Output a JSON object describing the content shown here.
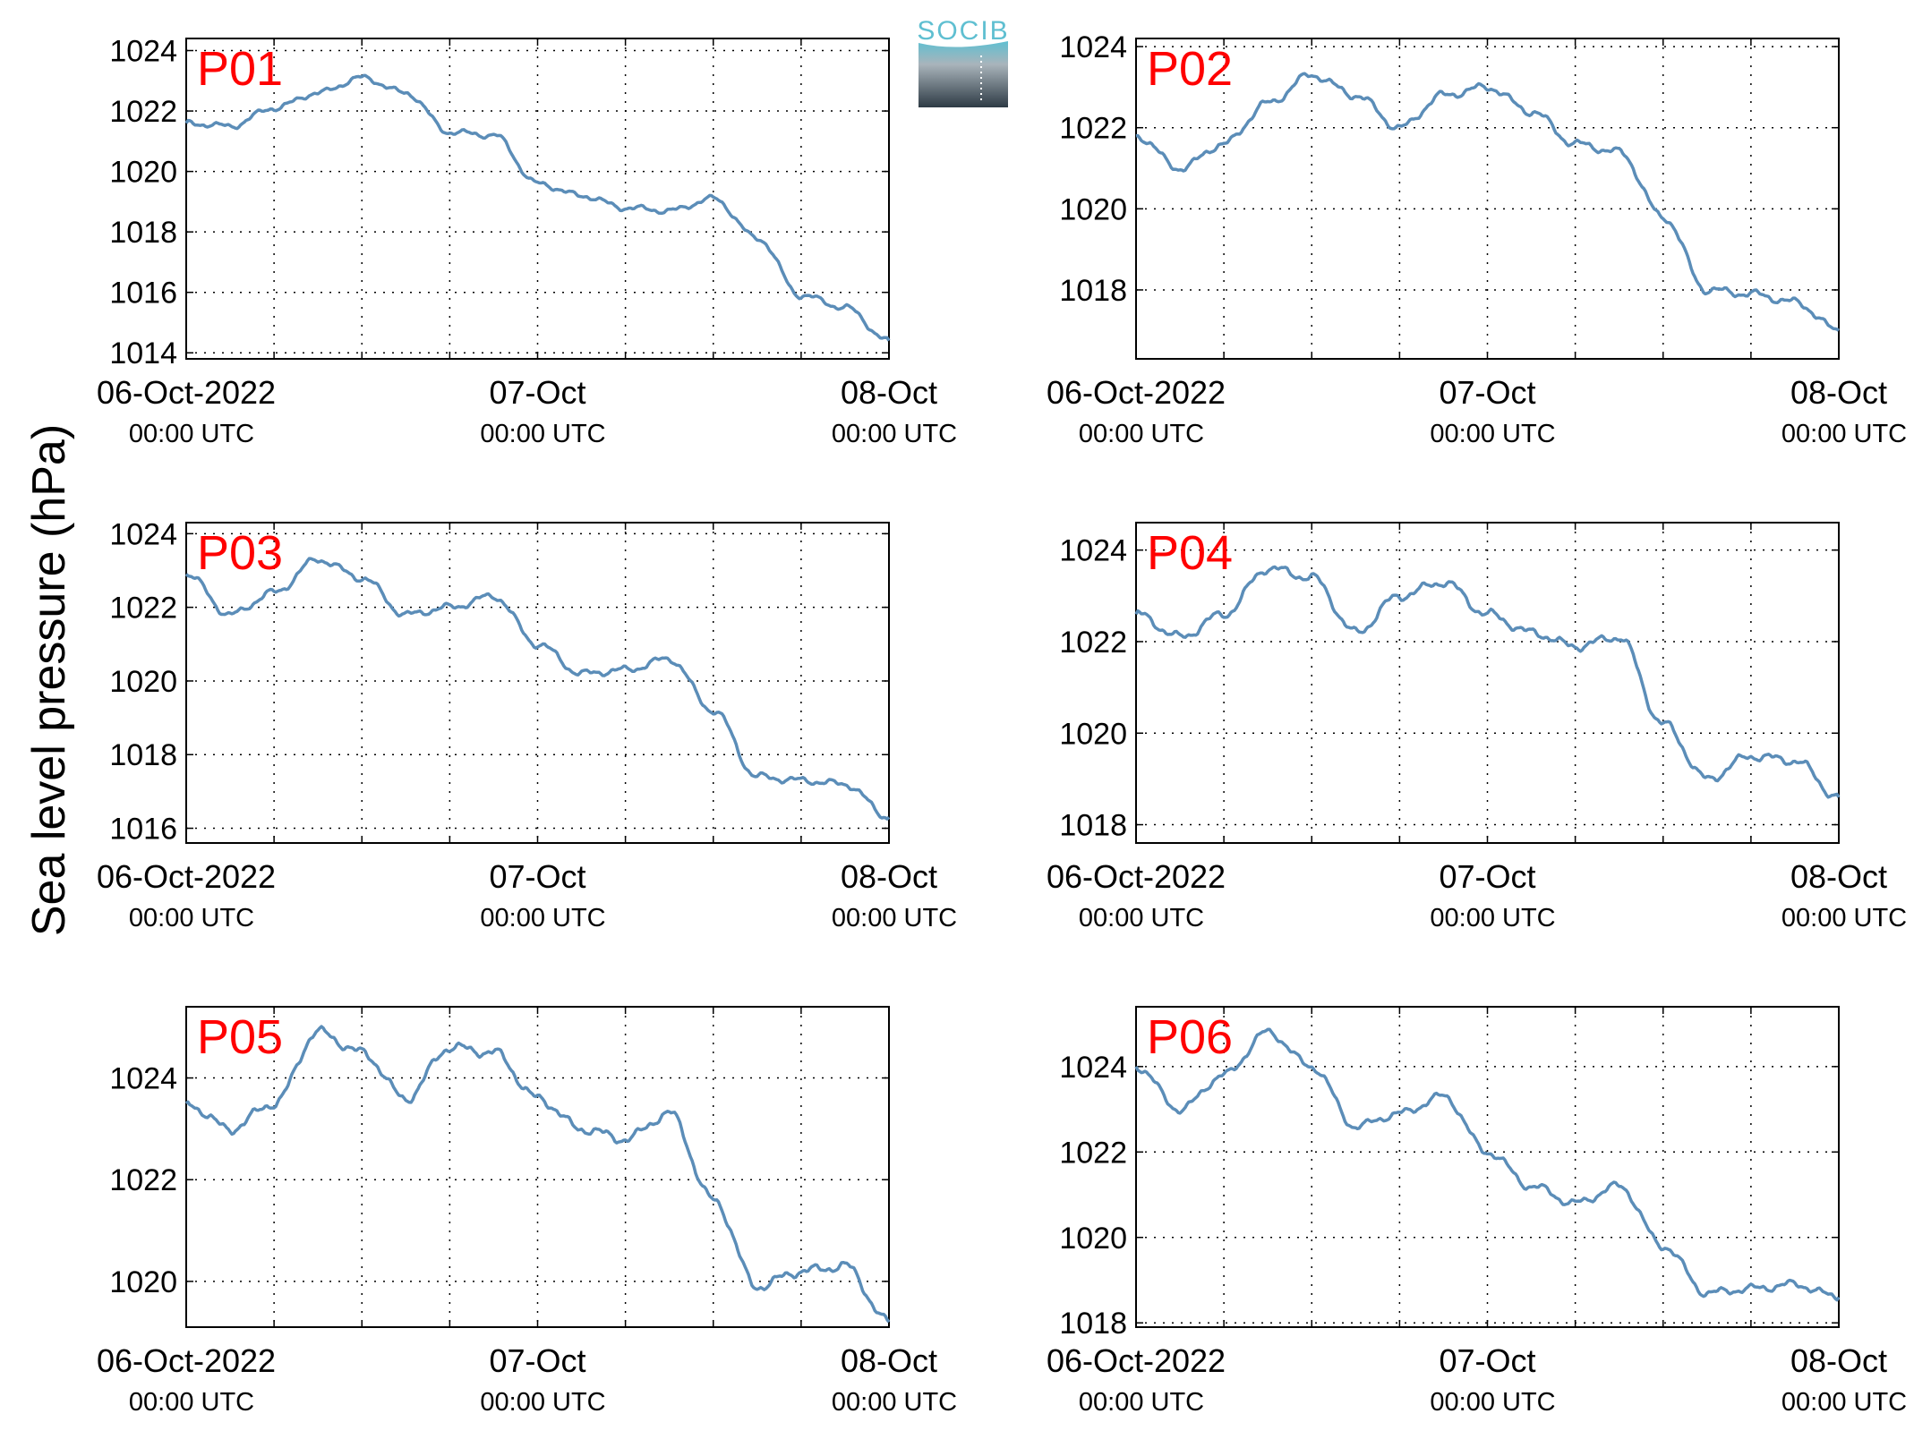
{
  "figure": {
    "ylabel": "Sea level pressure (hPa)",
    "line_color": "#5b8db8",
    "label_color": "#ff0000",
    "logo": {
      "text": "SOCIB",
      "color_top": "#5fbfd1",
      "color_bottom": "#2e3b45"
    },
    "x_ticks": [
      {
        "date": "06-Oct-2022",
        "time": "00:00 UTC"
      },
      {
        "date": "07-Oct",
        "time": "00:00 UTC"
      },
      {
        "date": "08-Oct",
        "time": "00:00 UTC"
      }
    ]
  },
  "chart_data": [
    {
      "type": "line",
      "station": "P01",
      "xlim": [
        "2022-10-06T00:00",
        "2022-10-08T00:00"
      ],
      "ylim": [
        1013.8,
        1024.4
      ],
      "yticks": [
        1014,
        1016,
        1018,
        1020,
        1022,
        1024
      ],
      "grid": true,
      "x": [
        "2022-10-06T00:00",
        "2022-10-06T03:00",
        "2022-10-06T06:00",
        "2022-10-06T09:00",
        "2022-10-06T12:00",
        "2022-10-06T15:00",
        "2022-10-06T18:00",
        "2022-10-06T21:00",
        "2022-10-07T00:00",
        "2022-10-07T03:00",
        "2022-10-07T06:00",
        "2022-10-07T09:00",
        "2022-10-07T12:00",
        "2022-10-07T15:00",
        "2022-10-07T18:00",
        "2022-10-07T21:00",
        "2022-10-08T00:00"
      ],
      "values": [
        1021.6,
        1021.5,
        1022.1,
        1022.6,
        1023.1,
        1022.6,
        1021.3,
        1021.2,
        1019.6,
        1019.2,
        1018.8,
        1018.7,
        1019.1,
        1017.8,
        1015.9,
        1015.5,
        1014.4
      ]
    },
    {
      "type": "line",
      "station": "P02",
      "xlim": [
        "2022-10-06T00:00",
        "2022-10-08T00:00"
      ],
      "ylim": [
        1016.3,
        1024.2
      ],
      "yticks": [
        1018,
        1020,
        1022,
        1024
      ],
      "grid": true,
      "x": [
        "2022-10-06T00:00",
        "2022-10-06T03:00",
        "2022-10-06T06:00",
        "2022-10-06T09:00",
        "2022-10-06T12:00",
        "2022-10-06T15:00",
        "2022-10-06T18:00",
        "2022-10-06T21:00",
        "2022-10-07T00:00",
        "2022-10-07T03:00",
        "2022-10-07T06:00",
        "2022-10-07T09:00",
        "2022-10-07T12:00",
        "2022-10-07T15:00",
        "2022-10-07T18:00",
        "2022-10-07T21:00",
        "2022-10-08T00:00"
      ],
      "values": [
        1021.8,
        1021.0,
        1021.6,
        1022.6,
        1023.3,
        1022.8,
        1022.0,
        1022.8,
        1023.0,
        1022.4,
        1021.6,
        1021.4,
        1019.8,
        1018.0,
        1017.9,
        1017.7,
        1017.0
      ]
    },
    {
      "type": "line",
      "station": "P03",
      "xlim": [
        "2022-10-06T00:00",
        "2022-10-08T00:00"
      ],
      "ylim": [
        1015.6,
        1024.3
      ],
      "yticks": [
        1016,
        1018,
        1020,
        1022,
        1024
      ],
      "grid": true,
      "x": [
        "2022-10-06T00:00",
        "2022-10-06T03:00",
        "2022-10-06T06:00",
        "2022-10-06T09:00",
        "2022-10-06T12:00",
        "2022-10-06T15:00",
        "2022-10-06T18:00",
        "2022-10-06T21:00",
        "2022-10-07T00:00",
        "2022-10-07T03:00",
        "2022-10-07T06:00",
        "2022-10-07T09:00",
        "2022-10-07T12:00",
        "2022-10-07T15:00",
        "2022-10-07T18:00",
        "2022-10-07T21:00",
        "2022-10-08T00:00"
      ],
      "values": [
        1022.9,
        1021.8,
        1022.4,
        1023.3,
        1022.8,
        1021.8,
        1022.0,
        1022.3,
        1021.0,
        1020.2,
        1020.3,
        1020.6,
        1019.2,
        1017.4,
        1017.3,
        1017.2,
        1016.3
      ]
    },
    {
      "type": "line",
      "station": "P04",
      "xlim": [
        "2022-10-06T00:00",
        "2022-10-08T00:00"
      ],
      "ylim": [
        1017.6,
        1024.6
      ],
      "yticks": [
        1018,
        1020,
        1022,
        1024
      ],
      "grid": true,
      "x": [
        "2022-10-06T00:00",
        "2022-10-06T03:00",
        "2022-10-06T06:00",
        "2022-10-06T09:00",
        "2022-10-06T12:00",
        "2022-10-06T15:00",
        "2022-10-06T18:00",
        "2022-10-06T21:00",
        "2022-10-07T00:00",
        "2022-10-07T03:00",
        "2022-10-07T06:00",
        "2022-10-07T09:00",
        "2022-10-07T12:00",
        "2022-10-07T15:00",
        "2022-10-07T18:00",
        "2022-10-07T21:00",
        "2022-10-08T00:00"
      ],
      "values": [
        1022.6,
        1022.1,
        1022.6,
        1023.6,
        1023.4,
        1022.2,
        1023.0,
        1023.3,
        1022.6,
        1022.2,
        1021.9,
        1022.1,
        1020.2,
        1019.0,
        1019.5,
        1019.4,
        1018.6
      ]
    },
    {
      "type": "line",
      "station": "P05",
      "xlim": [
        "2022-10-06T00:00",
        "2022-10-08T00:00"
      ],
      "ylim": [
        1019.1,
        1025.4
      ],
      "yticks": [
        1020,
        1022,
        1024
      ],
      "grid": true,
      "x": [
        "2022-10-06T00:00",
        "2022-10-06T03:00",
        "2022-10-06T06:00",
        "2022-10-06T09:00",
        "2022-10-06T12:00",
        "2022-10-06T15:00",
        "2022-10-06T18:00",
        "2022-10-06T21:00",
        "2022-10-07T00:00",
        "2022-10-07T03:00",
        "2022-10-07T06:00",
        "2022-10-07T09:00",
        "2022-10-07T12:00",
        "2022-10-07T15:00",
        "2022-10-07T18:00",
        "2022-10-07T21:00",
        "2022-10-08T00:00"
      ],
      "values": [
        1023.5,
        1023.0,
        1023.5,
        1024.9,
        1024.5,
        1023.6,
        1024.6,
        1024.5,
        1023.6,
        1023.0,
        1022.8,
        1023.3,
        1021.6,
        1019.9,
        1020.2,
        1020.3,
        1019.2
      ]
    },
    {
      "type": "line",
      "station": "P06",
      "xlim": [
        "2022-10-06T00:00",
        "2022-10-08T00:00"
      ],
      "ylim": [
        1017.9,
        1025.4
      ],
      "yticks": [
        1018,
        1020,
        1022,
        1024
      ],
      "grid": true,
      "x": [
        "2022-10-06T00:00",
        "2022-10-06T03:00",
        "2022-10-06T06:00",
        "2022-10-06T09:00",
        "2022-10-06T12:00",
        "2022-10-06T15:00",
        "2022-10-06T18:00",
        "2022-10-06T21:00",
        "2022-10-07T00:00",
        "2022-10-07T03:00",
        "2022-10-07T06:00",
        "2022-10-07T09:00",
        "2022-10-07T12:00",
        "2022-10-07T15:00",
        "2022-10-07T18:00",
        "2022-10-07T21:00",
        "2022-10-08T00:00"
      ],
      "values": [
        1024.0,
        1023.0,
        1023.8,
        1024.8,
        1024.0,
        1022.6,
        1022.9,
        1023.3,
        1022.0,
        1021.2,
        1020.8,
        1021.2,
        1019.8,
        1018.7,
        1018.8,
        1018.9,
        1018.6
      ]
    }
  ]
}
